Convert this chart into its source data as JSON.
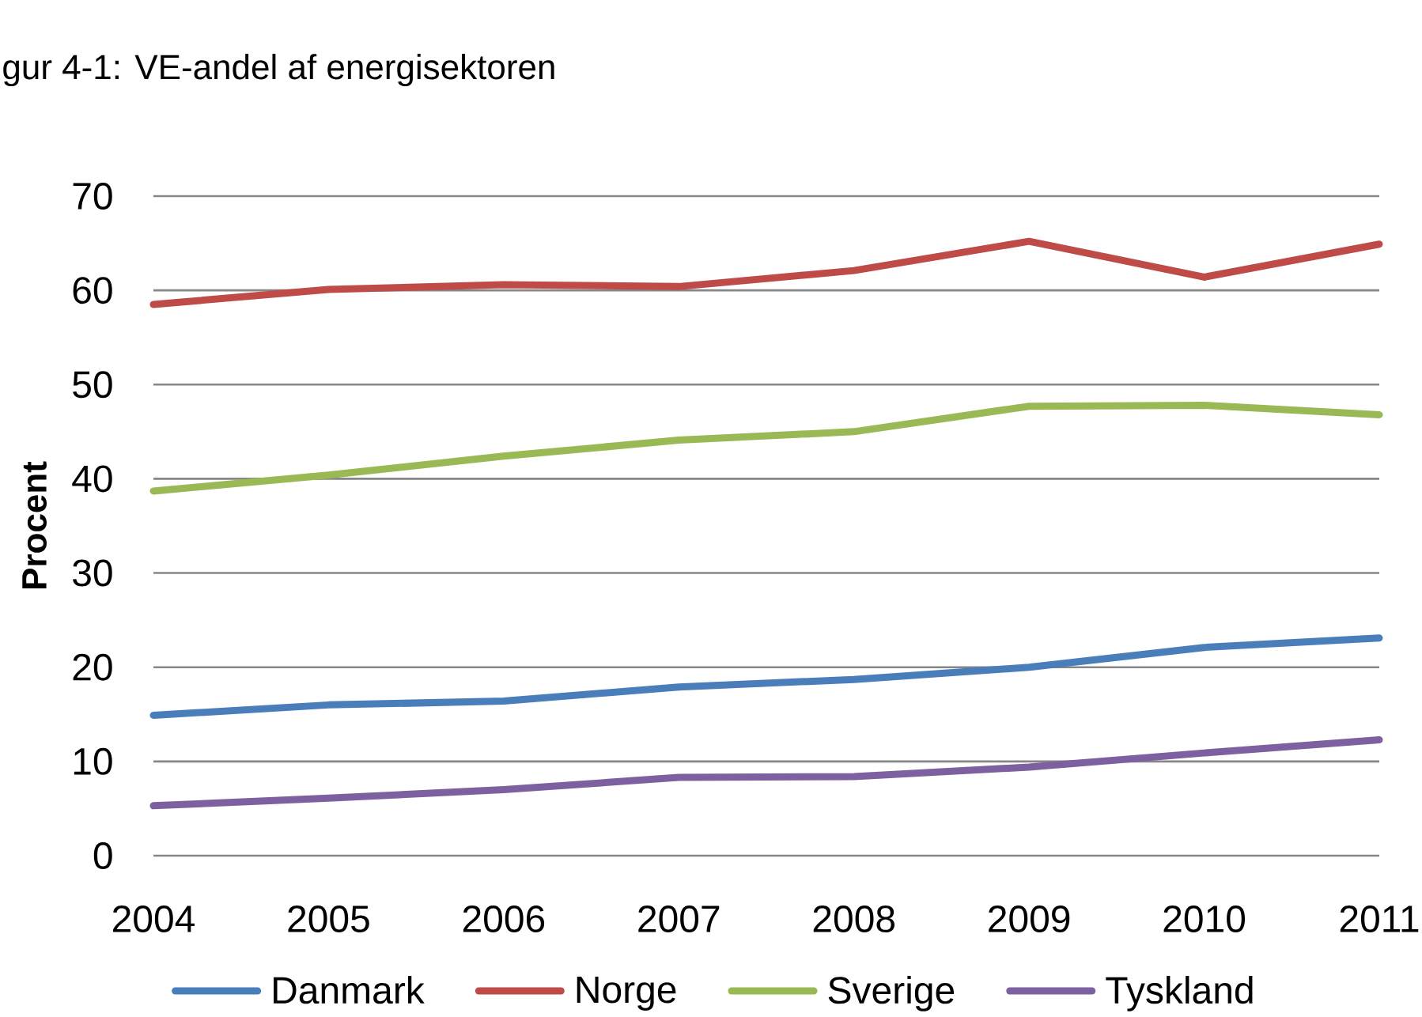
{
  "chart_data": {
    "type": "line",
    "title": "gur 4-1: VE-andel af energisektoren",
    "ylabel": "Procent",
    "categories": [
      "2004",
      "2005",
      "2006",
      "2007",
      "2008",
      "2009",
      "2010",
      "2011"
    ],
    "series": [
      {
        "name": "Danmark",
        "color": "#4a7ebb",
        "values": [
          14.9,
          16.0,
          16.4,
          17.9,
          18.7,
          20.0,
          22.1,
          23.1
        ]
      },
      {
        "name": "Norge",
        "color": "#be4b48",
        "values": [
          58.5,
          60.1,
          60.6,
          60.4,
          62.1,
          65.2,
          61.4,
          64.9
        ]
      },
      {
        "name": "Sverige",
        "color": "#98b954",
        "values": [
          38.7,
          40.4,
          42.4,
          44.1,
          45.0,
          47.7,
          47.8,
          46.8
        ]
      },
      {
        "name": "Tyskland",
        "color": "#7d60a0",
        "values": [
          5.3,
          6.1,
          7.0,
          8.3,
          8.4,
          9.4,
          10.9,
          12.3
        ]
      }
    ],
    "ylim": [
      0,
      70
    ],
    "yticks": [
      0,
      10,
      20,
      30,
      40,
      50,
      60,
      70
    ],
    "grid": "y",
    "legend": "bottom",
    "line_style": "solid"
  }
}
